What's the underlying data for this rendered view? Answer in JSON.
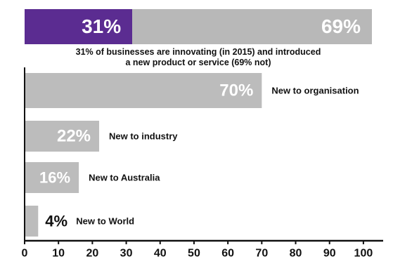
{
  "summary": {
    "split": [
      {
        "label": "31%",
        "value": 31,
        "color": "#5b2c91"
      },
      {
        "label": "69%",
        "value": 69,
        "color": "#b8b8b8"
      }
    ],
    "caption_line1": "31% of businesses are innovating (in 2015) and introduced",
    "caption_line2": "a new product or service (69% not)"
  },
  "chart_data": {
    "type": "bar",
    "orientation": "horizontal",
    "categories": [
      "New to organisation",
      "New to industry",
      "New to Australia",
      "New to World"
    ],
    "values": [
      70,
      22,
      16,
      4
    ],
    "value_labels": [
      "70%",
      "22%",
      "16%",
      "4%"
    ],
    "xlim": [
      0,
      105
    ],
    "xticks": [
      0,
      10,
      20,
      30,
      40,
      50,
      60,
      70,
      80,
      90,
      100
    ],
    "xtick_labels": [
      "0",
      "10",
      "20",
      "30",
      "40",
      "50",
      "60",
      "70",
      "80",
      "90",
      "100"
    ],
    "bar_color": "#bcbcbc",
    "grid": false,
    "legend": "none"
  }
}
